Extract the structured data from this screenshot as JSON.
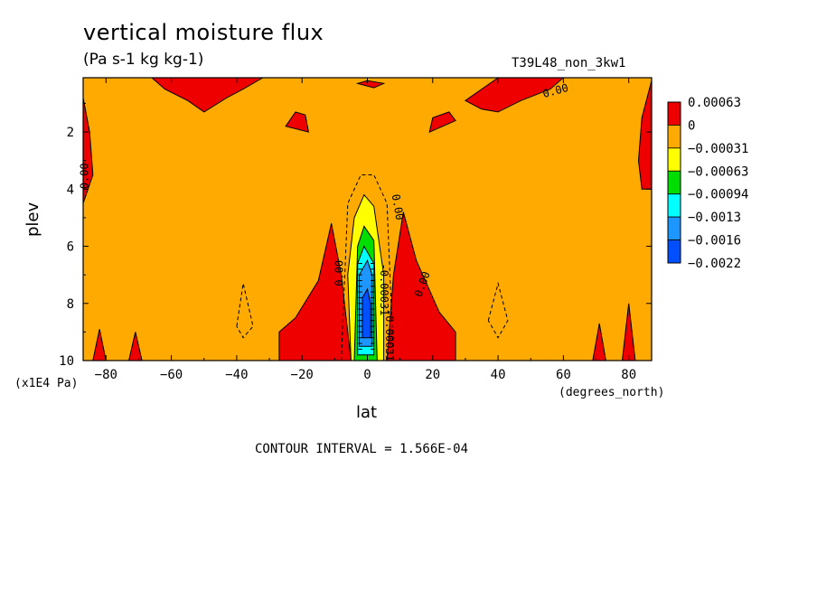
{
  "header": {
    "title": "vertical moisture flux",
    "units": "(Pa s-1 kg kg-1)",
    "run_id": "T39L48_non_3kw1"
  },
  "footer": {
    "contour_interval": "CONTOUR INTERVAL = 1.566E-04"
  },
  "chart_data": {
    "type": "heatmap",
    "title": "vertical moisture flux",
    "subtitle": "(Pa s-1 kg kg-1)",
    "xlabel": "lat",
    "xunit": "(degrees_north)",
    "ylabel": "plev",
    "yunit": "(x1E4 Pa)",
    "xlim": [
      -87,
      87
    ],
    "ylim": [
      10,
      0.1
    ],
    "y_inverted": true,
    "x_ticks": [
      -80,
      -60,
      -40,
      -20,
      0,
      20,
      40,
      60,
      80
    ],
    "y_ticks": [
      2,
      4,
      6,
      8,
      10
    ],
    "contour_interval": 0.0001566,
    "contour_labels": [
      "0.00",
      "0.00",
      "0.00",
      "0.00",
      "0.00",
      "-0.00031",
      "-0.00031"
    ],
    "colorbar": {
      "labels": [
        "0.00063",
        "0",
        "-0.00031",
        "-0.00063",
        "-0.00094",
        "-0.0013",
        "-0.0016",
        "-0.0022"
      ],
      "colors": [
        "#ee0000",
        "#ffaa00",
        "#ffff00",
        "#00dd00",
        "#00ffff",
        "#1e96ff",
        "#0050ff"
      ]
    },
    "background_level_color": "#ffaa00",
    "regions": [
      {
        "level": "positive",
        "color": "#ee0000",
        "desc": "upper-level near -60",
        "polygon": [
          [
            -66,
            0.1
          ],
          [
            -62,
            0.5
          ],
          [
            -55,
            0.9
          ],
          [
            -50,
            1.3
          ],
          [
            -43,
            0.8
          ],
          [
            -38,
            0.5
          ],
          [
            -32,
            0.1
          ]
        ]
      },
      {
        "level": "positive",
        "color": "#ee0000",
        "desc": "upper-level near -20",
        "polygon": [
          [
            -25,
            1.8
          ],
          [
            -22,
            1.3
          ],
          [
            -19,
            1.4
          ],
          [
            -18,
            2.0
          ]
        ]
      },
      {
        "level": "positive",
        "color": "#ee0000",
        "desc": "upper-level near 0",
        "polygon": [
          [
            -3,
            0.3
          ],
          [
            0,
            0.2
          ],
          [
            5,
            0.3
          ],
          [
            2,
            0.45
          ]
        ]
      },
      {
        "level": "positive",
        "color": "#ee0000",
        "desc": "upper-level near 20",
        "polygon": [
          [
            19,
            2.0
          ],
          [
            20,
            1.5
          ],
          [
            25,
            1.3
          ],
          [
            27,
            1.6
          ]
        ]
      },
      {
        "level": "positive",
        "color": "#ee0000",
        "desc": "upper-level near 45",
        "polygon": [
          [
            30,
            0.9
          ],
          [
            35,
            0.5
          ],
          [
            40,
            0.1
          ],
          [
            60,
            0.1
          ],
          [
            56,
            0.5
          ],
          [
            47,
            0.9
          ],
          [
            40,
            1.3
          ],
          [
            35,
            1.2
          ]
        ]
      },
      {
        "level": "positive",
        "color": "#ee0000",
        "desc": "western edge",
        "polygon": [
          [
            -87,
            0.8
          ],
          [
            -85,
            2.0
          ],
          [
            -84,
            3.5
          ],
          [
            -87,
            4.5
          ]
        ]
      },
      {
        "level": "positive",
        "color": "#ee0000",
        "desc": "eastern edge",
        "polygon": [
          [
            87,
            0.2
          ],
          [
            84,
            1.5
          ],
          [
            83,
            3.0
          ],
          [
            84,
            4.0
          ],
          [
            87,
            4.0
          ]
        ]
      },
      {
        "level": "positive",
        "color": "#ee0000",
        "desc": "lower flank south",
        "polygon": [
          [
            -27,
            10
          ],
          [
            -27,
            9.0
          ],
          [
            -22,
            8.5
          ],
          [
            -15,
            7.2
          ],
          [
            -11,
            5.2
          ],
          [
            -8,
            7.0
          ],
          [
            -5,
            10
          ]
        ]
      },
      {
        "level": "positive",
        "color": "#ee0000",
        "desc": "lower flank north",
        "polygon": [
          [
            6,
            10
          ],
          [
            8,
            7.0
          ],
          [
            11,
            4.8
          ],
          [
            15,
            6.5
          ],
          [
            22,
            8.3
          ],
          [
            27,
            9.0
          ],
          [
            27,
            10
          ]
        ]
      },
      {
        "level": "positive",
        "color": "#ee0000",
        "desc": "surface spike -82",
        "polygon": [
          [
            -84,
            10
          ],
          [
            -82,
            8.9
          ],
          [
            -80,
            10
          ]
        ]
      },
      {
        "level": "positive",
        "color": "#ee0000",
        "desc": "surface spike -71",
        "polygon": [
          [
            -73,
            10
          ],
          [
            -71,
            9.0
          ],
          [
            -69,
            10
          ]
        ]
      },
      {
        "level": "positive",
        "color": "#ee0000",
        "desc": "surface spike 72",
        "polygon": [
          [
            69,
            10
          ],
          [
            71,
            8.7
          ],
          [
            73,
            10
          ]
        ]
      },
      {
        "level": "positive",
        "color": "#ee0000",
        "desc": "surface spike 80",
        "polygon": [
          [
            78,
            10
          ],
          [
            80,
            8.0
          ],
          [
            82,
            10
          ]
        ]
      },
      {
        "level": "-0.00031",
        "color": "#ffff00",
        "desc": "updraft yellow",
        "polygon": [
          [
            -5,
            10
          ],
          [
            -6,
            7.0
          ],
          [
            -4,
            5.0
          ],
          [
            -1,
            4.2
          ],
          [
            2,
            4.6
          ],
          [
            5,
            7.0
          ],
          [
            5,
            10
          ]
        ]
      },
      {
        "level": "-0.00063",
        "color": "#00dd00",
        "desc": "updraft green",
        "polygon": [
          [
            -4,
            10
          ],
          [
            -3,
            6.0
          ],
          [
            -1,
            5.3
          ],
          [
            2,
            5.8
          ],
          [
            3,
            10
          ]
        ]
      },
      {
        "level": "-0.00094",
        "color": "#00ffff",
        "desc": "updraft cyan",
        "polygon": [
          [
            -3,
            9.8
          ],
          [
            -3,
            6.6
          ],
          [
            -1,
            6.0
          ],
          [
            2,
            6.6
          ],
          [
            2,
            9.8
          ]
        ]
      },
      {
        "level": "-0.0013",
        "color": "#1e96ff",
        "desc": "updraft light blue",
        "polygon": [
          [
            -2.5,
            9.5
          ],
          [
            -2.5,
            7.0
          ],
          [
            0,
            6.5
          ],
          [
            1.5,
            7.0
          ],
          [
            1.5,
            9.5
          ]
        ]
      },
      {
        "level": "-0.0016",
        "color": "#0050ff",
        "desc": "updraft blue",
        "polygon": [
          [
            -1.5,
            9.2
          ],
          [
            -1.5,
            7.8
          ],
          [
            0,
            7.5
          ],
          [
            1,
            8.0
          ],
          [
            1,
            9.2
          ]
        ]
      }
    ],
    "dashed_contours": [
      [
        [
          -8,
          10
        ],
        [
          -6,
          4.5
        ],
        [
          -2,
          3.5
        ],
        [
          2,
          3.5
        ],
        [
          6,
          4.5
        ],
        [
          8,
          10
        ]
      ],
      [
        [
          -40,
          8.8
        ],
        [
          -38,
          7.3
        ],
        [
          -35,
          8.8
        ],
        [
          -38,
          9.2
        ],
        [
          -40,
          8.8
        ]
      ],
      [
        [
          37,
          8.6
        ],
        [
          40,
          7.3
        ],
        [
          43,
          8.6
        ],
        [
          40,
          9.2
        ],
        [
          37,
          8.6
        ]
      ]
    ]
  }
}
